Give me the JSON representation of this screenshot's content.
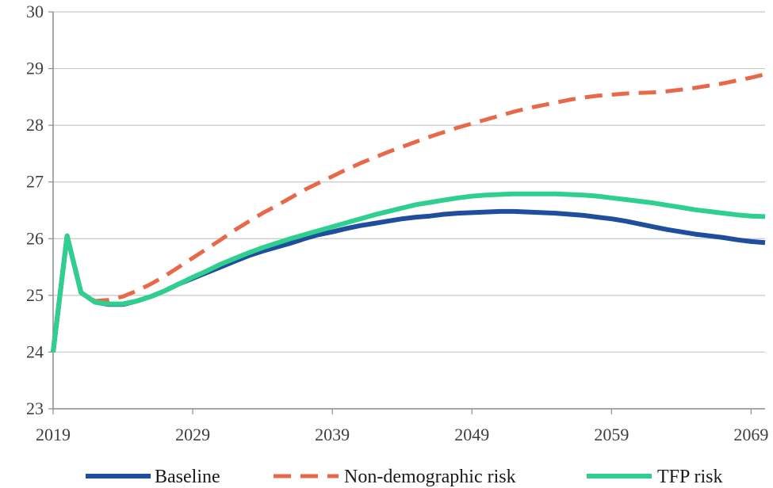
{
  "chart_data": {
    "type": "line",
    "title": "",
    "xlabel": "",
    "ylabel": "",
    "xlim": [
      2019,
      2070
    ],
    "ylim": [
      23,
      30
    ],
    "grid": true,
    "legend_position": "bottom",
    "x_ticks": [
      "2019",
      "2029",
      "2039",
      "2049",
      "2059",
      "2069"
    ],
    "y_ticks": [
      "23",
      "24",
      "25",
      "26",
      "27",
      "28",
      "29",
      "30"
    ],
    "x": [
      2019,
      2020,
      2021,
      2022,
      2023,
      2024,
      2025,
      2026,
      2027,
      2028,
      2029,
      2030,
      2031,
      2032,
      2033,
      2034,
      2035,
      2036,
      2037,
      2038,
      2039,
      2040,
      2041,
      2042,
      2043,
      2044,
      2045,
      2046,
      2047,
      2048,
      2049,
      2050,
      2051,
      2052,
      2053,
      2054,
      2055,
      2056,
      2057,
      2058,
      2059,
      2060,
      2061,
      2062,
      2063,
      2064,
      2065,
      2066,
      2067,
      2068,
      2069,
      2070
    ],
    "series": [
      {
        "name": "Baseline",
        "color": "#1f4e9c",
        "dash": "solid",
        "values": [
          24.0,
          26.05,
          25.05,
          24.88,
          24.84,
          24.84,
          24.9,
          24.98,
          25.08,
          25.2,
          25.3,
          25.4,
          25.5,
          25.6,
          25.7,
          25.78,
          25.85,
          25.92,
          26.0,
          26.07,
          26.12,
          26.18,
          26.23,
          26.27,
          26.31,
          26.35,
          26.38,
          26.4,
          26.43,
          26.45,
          26.46,
          26.47,
          26.48,
          26.48,
          26.47,
          26.46,
          26.45,
          26.43,
          26.41,
          26.38,
          26.35,
          26.31,
          26.26,
          26.21,
          26.16,
          26.12,
          26.08,
          26.05,
          26.02,
          25.98,
          25.95,
          25.93
        ]
      },
      {
        "name": "Non-demographic risk",
        "color": "#e8694a",
        "dash": "dashed",
        "values": [
          24.0,
          26.05,
          25.05,
          24.9,
          24.92,
          24.98,
          25.08,
          25.2,
          25.34,
          25.5,
          25.66,
          25.82,
          25.98,
          26.15,
          26.3,
          26.45,
          26.58,
          26.72,
          26.86,
          26.98,
          27.1,
          27.22,
          27.33,
          27.43,
          27.53,
          27.62,
          27.71,
          27.8,
          27.88,
          27.96,
          28.03,
          28.1,
          28.17,
          28.24,
          28.3,
          28.35,
          28.4,
          28.45,
          28.49,
          28.52,
          28.54,
          28.56,
          28.57,
          28.58,
          28.6,
          28.63,
          28.66,
          28.7,
          28.74,
          28.79,
          28.84,
          28.9
        ]
      },
      {
        "name": "TFP risk",
        "color": "#2fcf8f",
        "dash": "solid",
        "values": [
          24.0,
          26.05,
          25.05,
          24.88,
          24.85,
          24.85,
          24.9,
          24.98,
          25.08,
          25.2,
          25.32,
          25.43,
          25.55,
          25.65,
          25.75,
          25.84,
          25.92,
          26.0,
          26.07,
          26.14,
          26.21,
          26.28,
          26.35,
          26.42,
          26.48,
          26.54,
          26.6,
          26.64,
          26.68,
          26.72,
          26.75,
          26.77,
          26.78,
          26.79,
          26.79,
          26.79,
          26.79,
          26.78,
          26.77,
          26.75,
          26.72,
          26.69,
          26.66,
          26.63,
          26.59,
          26.55,
          26.51,
          26.48,
          26.45,
          26.42,
          26.4,
          26.39
        ]
      }
    ]
  }
}
